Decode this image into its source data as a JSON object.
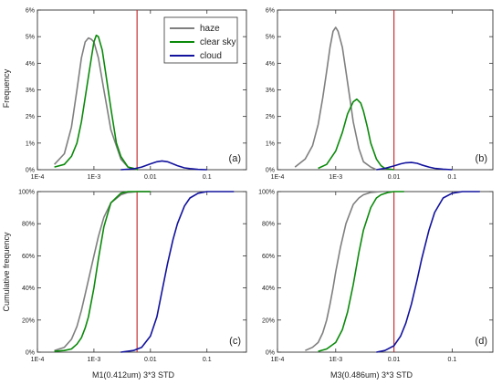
{
  "colors": {
    "haze": "#7f7f7f",
    "clear_sky": "#0a8a0a",
    "cloud": "#12129e",
    "threshold": "#c83232",
    "frame": "#333333"
  },
  "legend": [
    {
      "key": "haze",
      "label": "haze"
    },
    {
      "key": "clear_sky",
      "label": "clear sky"
    },
    {
      "key": "cloud",
      "label": "cloud"
    }
  ],
  "ylabels": {
    "top": "Frequency",
    "bottom": "Cumulative frequency"
  },
  "xlabels": {
    "left": "M1(0.412um) 3*3 STD",
    "right": "M3(0.486um) 3*3 STD"
  },
  "chart_data": [
    {
      "type": "line",
      "panel_label": "(a)",
      "xscale": "log",
      "xlim": [
        0.0001,
        0.5
      ],
      "ylim": [
        0,
        6
      ],
      "xticks": [
        "1E-4",
        "1E-3",
        "0.01",
        "0.1"
      ],
      "yticks": [
        "0%",
        "1%",
        "2%",
        "3%",
        "4%",
        "5%",
        "6%"
      ],
      "threshold_x": 0.0058,
      "series": [
        {
          "name": "haze",
          "x": [
            0.0002,
            0.0003,
            0.0004,
            0.0005,
            0.0006,
            0.0007,
            0.0008,
            0.0009,
            0.001,
            0.0012,
            0.0015,
            0.002,
            0.003,
            0.004,
            0.006
          ],
          "y": [
            0.2,
            0.6,
            1.6,
            3.0,
            4.2,
            4.8,
            4.95,
            4.9,
            4.8,
            4.2,
            3.0,
            1.5,
            0.4,
            0.1,
            0
          ]
        },
        {
          "name": "clear sky",
          "x": [
            0.0002,
            0.0003,
            0.0004,
            0.0005,
            0.0006,
            0.0007,
            0.0008,
            0.0009,
            0.001,
            0.0011,
            0.0012,
            0.0014,
            0.0016,
            0.002,
            0.0025,
            0.003,
            0.004,
            0.005,
            0.006
          ],
          "y": [
            0.1,
            0.2,
            0.5,
            1.0,
            1.8,
            2.7,
            3.5,
            4.2,
            4.8,
            5.05,
            5.0,
            4.5,
            3.7,
            2.3,
            1.0,
            0.5,
            0.1,
            0.05,
            0
          ]
        },
        {
          "name": "cloud",
          "x": [
            0.003,
            0.005,
            0.007,
            0.01,
            0.013,
            0.016,
            0.02,
            0.025,
            0.03,
            0.04,
            0.05,
            0.07,
            0.1
          ],
          "y": [
            0,
            0.03,
            0.1,
            0.22,
            0.3,
            0.33,
            0.3,
            0.22,
            0.15,
            0.07,
            0.04,
            0.01,
            0
          ]
        }
      ]
    },
    {
      "type": "line",
      "panel_label": "(b)",
      "xscale": "log",
      "xlim": [
        0.0001,
        0.5
      ],
      "ylim": [
        0,
        6
      ],
      "xticks": [
        "1E-4",
        "1E-3",
        "0.01",
        "0.1"
      ],
      "yticks": [
        "0%",
        "1%",
        "2%",
        "3%",
        "4%",
        "5%",
        "6%"
      ],
      "threshold_x": 0.01,
      "series": [
        {
          "name": "haze",
          "x": [
            0.0002,
            0.0003,
            0.0004,
            0.0005,
            0.0006,
            0.0007,
            0.0008,
            0.0009,
            0.001,
            0.0011,
            0.0013,
            0.0015,
            0.0018,
            0.002,
            0.0025,
            0.003,
            0.004,
            0.005
          ],
          "y": [
            0.1,
            0.4,
            0.9,
            1.7,
            2.7,
            3.7,
            4.6,
            5.2,
            5.35,
            5.2,
            4.6,
            3.7,
            2.5,
            1.8,
            0.8,
            0.3,
            0.1,
            0
          ]
        },
        {
          "name": "clear sky",
          "x": [
            0.0005,
            0.0007,
            0.001,
            0.0013,
            0.0016,
            0.002,
            0.0023,
            0.0027,
            0.003,
            0.0035,
            0.004,
            0.005,
            0.006,
            0.007,
            0.01
          ],
          "y": [
            0.05,
            0.2,
            0.7,
            1.4,
            2.1,
            2.55,
            2.65,
            2.5,
            2.2,
            1.6,
            1.0,
            0.4,
            0.15,
            0.05,
            0
          ]
        },
        {
          "name": "cloud",
          "x": [
            0.005,
            0.007,
            0.01,
            0.013,
            0.016,
            0.02,
            0.025,
            0.03,
            0.04,
            0.05,
            0.07,
            0.1
          ],
          "y": [
            0,
            0.05,
            0.14,
            0.22,
            0.26,
            0.27,
            0.24,
            0.18,
            0.1,
            0.05,
            0.02,
            0
          ]
        }
      ]
    },
    {
      "type": "line",
      "panel_label": "(c)",
      "xscale": "log",
      "xlim": [
        0.0001,
        0.5
      ],
      "ylim": [
        0,
        100
      ],
      "xticks": [
        "1E-4",
        "1E-3",
        "0.01",
        "0.1"
      ],
      "yticks": [
        "0%",
        "20%",
        "40%",
        "60%",
        "80%",
        "100%"
      ],
      "threshold_x": 0.0058,
      "series": [
        {
          "name": "haze",
          "x": [
            0.0002,
            0.0003,
            0.0004,
            0.0005,
            0.0006,
            0.0007,
            0.0008,
            0.001,
            0.0012,
            0.0015,
            0.002,
            0.003,
            0.004,
            0.006,
            0.01
          ],
          "y": [
            1,
            3,
            8,
            16,
            26,
            36,
            45,
            60,
            72,
            84,
            93,
            98,
            99.5,
            100,
            100
          ]
        },
        {
          "name": "clear sky",
          "x": [
            0.0002,
            0.0003,
            0.0004,
            0.0005,
            0.0006,
            0.0007,
            0.0008,
            0.001,
            0.0012,
            0.0015,
            0.002,
            0.003,
            0.004,
            0.006,
            0.01
          ],
          "y": [
            0.5,
            1,
            2,
            5,
            9,
            15,
            22,
            40,
            58,
            78,
            93,
            99,
            100,
            100,
            100
          ]
        },
        {
          "name": "cloud",
          "x": [
            0.003,
            0.005,
            0.007,
            0.01,
            0.013,
            0.016,
            0.02,
            0.025,
            0.03,
            0.04,
            0.05,
            0.07,
            0.1,
            0.15,
            0.3
          ],
          "y": [
            0,
            1,
            3,
            10,
            22,
            38,
            55,
            70,
            80,
            91,
            96,
            99,
            100,
            100,
            100
          ]
        }
      ]
    },
    {
      "type": "line",
      "panel_label": "(d)",
      "xscale": "log",
      "xlim": [
        0.0001,
        0.5
      ],
      "ylim": [
        0,
        100
      ],
      "xticks": [
        "1E-4",
        "1E-3",
        "0.01",
        "0.1"
      ],
      "yticks": [
        "0%",
        "20%",
        "40%",
        "60%",
        "80%",
        "100%"
      ],
      "threshold_x": 0.01,
      "series": [
        {
          "name": "haze",
          "x": [
            0.0003,
            0.0004,
            0.0005,
            0.0006,
            0.0007,
            0.0008,
            0.0009,
            0.001,
            0.0012,
            0.0015,
            0.002,
            0.0025,
            0.003,
            0.004,
            0.006
          ],
          "y": [
            1,
            3,
            6,
            12,
            20,
            30,
            40,
            50,
            65,
            80,
            92,
            96,
            98,
            99.5,
            100
          ]
        },
        {
          "name": "clear sky",
          "x": [
            0.0005,
            0.0007,
            0.001,
            0.0013,
            0.0016,
            0.002,
            0.0025,
            0.003,
            0.004,
            0.005,
            0.006,
            0.008,
            0.01,
            0.015
          ],
          "y": [
            0.5,
            2,
            6,
            14,
            25,
            42,
            62,
            76,
            90,
            96,
            98,
            99.5,
            100,
            100
          ]
        },
        {
          "name": "cloud",
          "x": [
            0.005,
            0.007,
            0.01,
            0.013,
            0.016,
            0.02,
            0.025,
            0.03,
            0.04,
            0.05,
            0.07,
            0.1,
            0.15,
            0.3
          ],
          "y": [
            0,
            1,
            4,
            10,
            18,
            30,
            45,
            58,
            76,
            87,
            96,
            99,
            100,
            100
          ]
        }
      ]
    }
  ]
}
